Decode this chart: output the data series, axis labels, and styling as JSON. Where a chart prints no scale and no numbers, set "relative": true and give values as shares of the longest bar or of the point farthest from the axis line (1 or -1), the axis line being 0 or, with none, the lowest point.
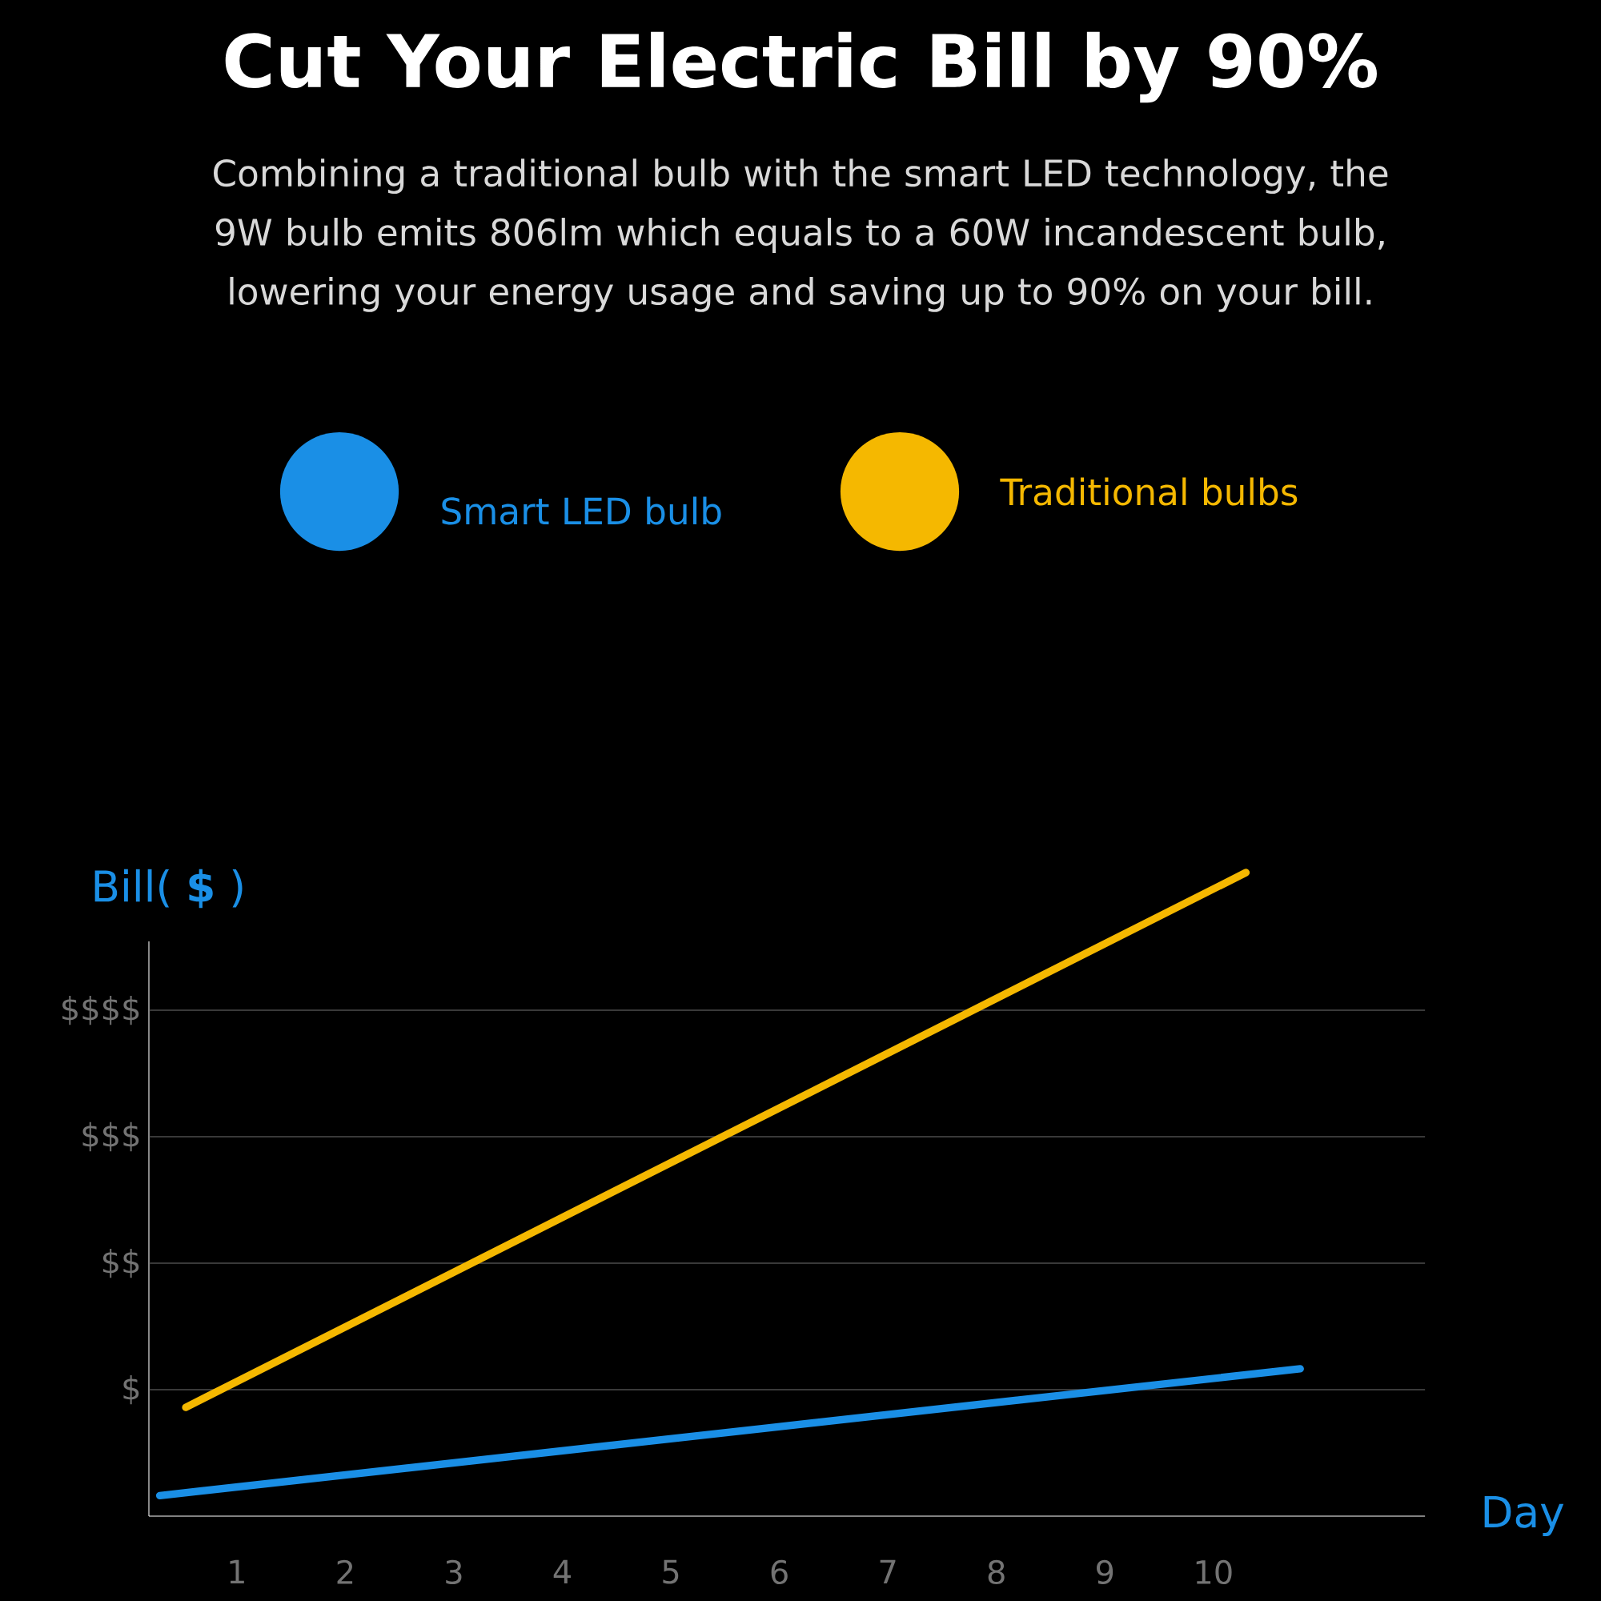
{
  "chart_data": {
    "type": "line",
    "title": "Cut Your Electric Bill by 90%",
    "subtitle": "Combining a traditional bulb with the smart LED technology, the 9W bulb emits 806lm which equals to a 60W incandescent bulb, lowering your energy usage and saving up to 90% on your bill.",
    "xlabel": "Day",
    "ylabel": "Bill( **$** )",
    "series": [
      {
        "name": "Smart LED bulb",
        "color": "#1a8fe6",
        "x": [
          0.29,
          10.8
        ],
        "values": [
          0.032,
          0.229
        ]
      },
      {
        "name": "Traditional bulbs",
        "color": "#f5b800",
        "x": [
          0.53,
          10.3
        ],
        "values": [
          0.169,
          1
        ]
      }
    ],
    "relative": true,
    "xlim": [
      0.19,
      11.95
    ],
    "xticks": [
      1,
      2,
      3,
      4,
      5,
      6,
      7,
      8,
      9,
      10
    ],
    "annotations": [
      "$",
      "$$",
      "$$$",
      "$$$$"
    ],
    "grid": "y",
    "legend": "top",
    "marker": "none",
    "line_style": "solid"
  }
}
